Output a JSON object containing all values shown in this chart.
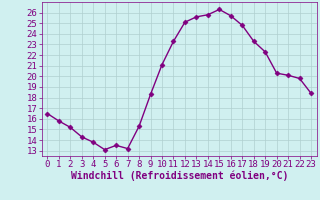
{
  "x": [
    0,
    1,
    2,
    3,
    4,
    5,
    6,
    7,
    8,
    9,
    10,
    11,
    12,
    13,
    14,
    15,
    16,
    17,
    18,
    19,
    20,
    21,
    22,
    23
  ],
  "y": [
    16.5,
    15.8,
    15.2,
    14.3,
    13.8,
    13.1,
    13.5,
    13.2,
    15.3,
    18.3,
    21.1,
    23.3,
    25.1,
    25.6,
    25.8,
    26.3,
    25.7,
    24.8,
    23.3,
    22.3,
    20.3,
    20.1,
    19.8,
    18.4
  ],
  "line_color": "#800080",
  "marker": "D",
  "marker_size": 2.5,
  "bg_color": "#d0f0f0",
  "grid_color": "#b0d0d0",
  "xlabel": "Windchill (Refroidissement éolien,°C)",
  "xlim": [
    -0.5,
    23.5
  ],
  "ylim": [
    12.5,
    27.0
  ],
  "yticks": [
    13,
    14,
    15,
    16,
    17,
    18,
    19,
    20,
    21,
    22,
    23,
    24,
    25,
    26
  ],
  "xticks": [
    0,
    1,
    2,
    3,
    4,
    5,
    6,
    7,
    8,
    9,
    10,
    11,
    12,
    13,
    14,
    15,
    16,
    17,
    18,
    19,
    20,
    21,
    22,
    23
  ],
  "label_color": "#800080",
  "font_size": 6.5,
  "xlabel_fontsize": 7.0,
  "linewidth": 1.0
}
